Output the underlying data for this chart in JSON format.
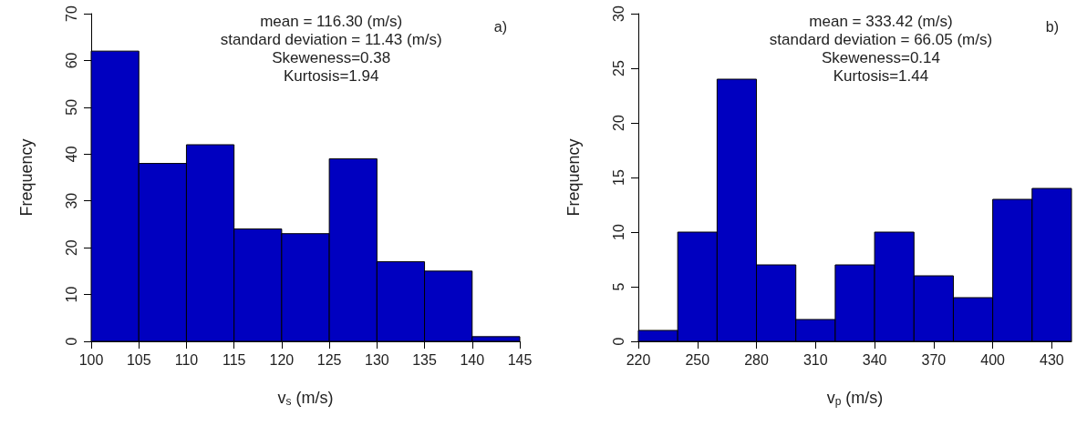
{
  "chart_data": [
    {
      "type": "histogram",
      "xlabel": "v$_{s}$ (m/s)",
      "ylabel": "Frequency",
      "bins": [
        100,
        105,
        110,
        115,
        120,
        125,
        130,
        135,
        140,
        145
      ],
      "values": [
        62,
        38,
        42,
        24,
        23,
        39,
        17,
        15,
        1
      ],
      "color": "#0000c0",
      "xlim": [
        100,
        145
      ],
      "xticks": [
        100,
        105,
        110,
        115,
        120,
        125,
        130,
        135,
        140,
        145
      ],
      "ylim": [
        0,
        70
      ],
      "yticks": [
        0,
        10,
        20,
        30,
        40,
        50,
        60,
        70
      ],
      "grid": false,
      "annotations": [
        "mean = 116.30 (m/s)",
        "standard deviation = 11.43 (m/s)",
        "Skeweness=0.38",
        "Kurtosis=1.94",
        "a)"
      ]
    },
    {
      "type": "histogram",
      "xlabel": "v$_{p}$ (m/s)",
      "ylabel": "Frequency",
      "bins": [
        220,
        240,
        260,
        280,
        300,
        320,
        340,
        360,
        380,
        400,
        420,
        440
      ],
      "values": [
        1,
        10,
        24,
        7,
        2,
        7,
        10,
        6,
        4,
        13,
        14
      ],
      "color": "#0000c0",
      "xlim": [
        220,
        440
      ],
      "xticks": [
        220,
        250,
        280,
        310,
        340,
        370,
        400,
        430
      ],
      "ylim": [
        0,
        30
      ],
      "yticks": [
        0,
        5,
        10,
        15,
        20,
        25,
        30
      ],
      "grid": false,
      "annotations": [
        "mean = 333.42 (m/s)",
        "standard deviation = 66.05 (m/s)",
        "Skeweness=0.14",
        "Kurtosis=1.44",
        "b)"
      ]
    }
  ]
}
